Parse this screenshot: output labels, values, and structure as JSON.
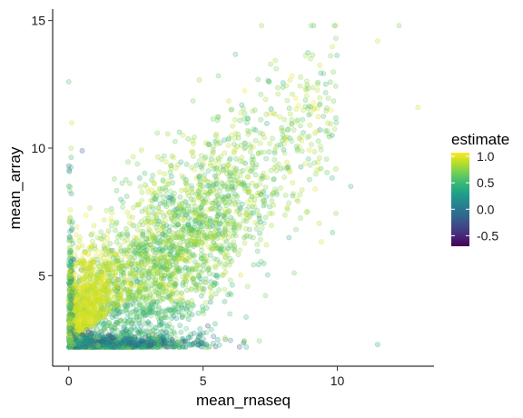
{
  "chart_data": {
    "type": "scatter",
    "xlabel": "mean_rnaseq",
    "ylabel": "mean_array",
    "xlim": [
      -0.6,
      13.6
    ],
    "ylim": [
      1.45,
      15.45
    ],
    "x_ticks": [
      0,
      5,
      10
    ],
    "y_ticks": [
      5,
      10,
      15
    ],
    "grid": false,
    "point_alpha": 0.25,
    "color_scale": {
      "title": "estimate",
      "palette": "viridis",
      "range": [
        -0.7,
        1.07
      ],
      "ticks": [
        1.0,
        0.5,
        0.0,
        -0.5
      ],
      "tick_labels": [
        "1.0",
        "0.5",
        "0.0",
        "-0.5"
      ],
      "colors": [
        "#440154",
        "#482878",
        "#3e4a89",
        "#31688e",
        "#26828e",
        "#1f9e89",
        "#35b779",
        "#6ece58",
        "#b5de2b",
        "#fde725"
      ],
      "position": "right"
    },
    "sample_points": [
      {
        "x": 0.0,
        "y": 12.6,
        "estimate": 0.55
      },
      {
        "x": 0.0,
        "y": 9.3,
        "estimate": -0.1
      },
      {
        "x": 0.5,
        "y": 9.9,
        "estimate": -0.2
      },
      {
        "x": 3.8,
        "y": 9.3,
        "estimate": 0.7
      },
      {
        "x": 4.5,
        "y": 7.5,
        "estimate": 0.75
      },
      {
        "x": 2.5,
        "y": 5.0,
        "estimate": 0.85
      },
      {
        "x": 1.0,
        "y": 2.6,
        "estimate": 0.95
      },
      {
        "x": 3.0,
        "y": 2.2,
        "estimate": 0.1
      },
      {
        "x": 9.0,
        "y": 13.5,
        "estimate": 0.8
      },
      {
        "x": 11.5,
        "y": 14.2,
        "estimate": 0.9
      },
      {
        "x": 12.3,
        "y": 14.8,
        "estimate": 0.7
      },
      {
        "x": 13.0,
        "y": 11.6,
        "estimate": 0.9
      },
      {
        "x": 10.5,
        "y": 8.5,
        "estimate": 0.45
      },
      {
        "x": 11.5,
        "y": 2.3,
        "estimate": 0.3
      },
      {
        "x": 6.0,
        "y": 3.5,
        "estimate": 0.6
      }
    ]
  }
}
